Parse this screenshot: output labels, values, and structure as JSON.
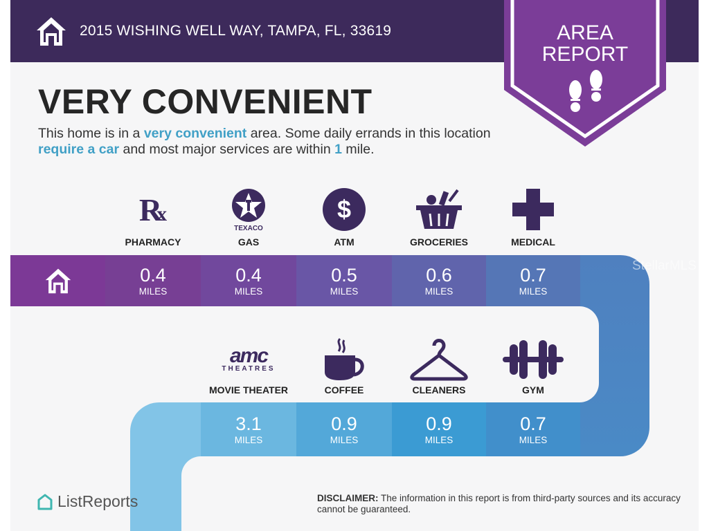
{
  "header": {
    "address": "2015 WISHING WELL WAY, TAMPA, FL, 33619",
    "badge_line1": "AREA",
    "badge_line2": "REPORT"
  },
  "title": "VERY CONVENIENT",
  "description": {
    "p1": "This home is in a ",
    "h1": "very convenient",
    "p2": " area. Some daily errands in this location ",
    "h2": "require a car",
    "p3": " and most major services are within ",
    "h3": "1",
    "p4": " mile."
  },
  "row1": [
    {
      "label": "PHARMACY",
      "icon": "rx-icon",
      "value": "0.4",
      "unit": "MILES",
      "color": "#773f94"
    },
    {
      "label": "GAS",
      "icon": "texaco-icon",
      "value": "0.4",
      "unit": "MILES",
      "color": "#71489d"
    },
    {
      "label": "ATM",
      "icon": "dollar-icon",
      "value": "0.5",
      "unit": "MILES",
      "color": "#6956a6"
    },
    {
      "label": "GROCERIES",
      "icon": "basket-icon",
      "value": "0.6",
      "unit": "MILES",
      "color": "#6064ac"
    },
    {
      "label": "MEDICAL",
      "icon": "medical-cross-icon",
      "value": "0.7",
      "unit": "MILES",
      "color": "#5576b6"
    }
  ],
  "row2": [
    {
      "label": "MOVIE THEATER",
      "icon": "amc-theatres-icon",
      "icon_text": "amc",
      "icon_sub": "THEATRES",
      "value": "3.1",
      "unit": "MILES",
      "color": "#6bb7e0"
    },
    {
      "label": "COFFEE",
      "icon": "coffee-icon",
      "value": "0.9",
      "unit": "MILES",
      "color": "#53a8d9"
    },
    {
      "label": "CLEANERS",
      "icon": "hanger-icon",
      "value": "0.9",
      "unit": "MILES",
      "color": "#3b9bd3"
    },
    {
      "label": "GYM",
      "icon": "dumbbell-icon",
      "value": "0.7",
      "unit": "MILES",
      "color": "#418fcb"
    }
  ],
  "colors": {
    "header": "#3d2a5b",
    "badge": "#7b3d98",
    "home_cell": "#7c3996",
    "icons": "#3c2a5e",
    "highlight": "#41a0c6"
  },
  "watermark": "StellarMLS",
  "footer": {
    "logo": "ListReports",
    "disclaimer_label": "DISCLAIMER:",
    "disclaimer": " The information in this report is from third-party sources and its accuracy cannot be guaranteed."
  }
}
